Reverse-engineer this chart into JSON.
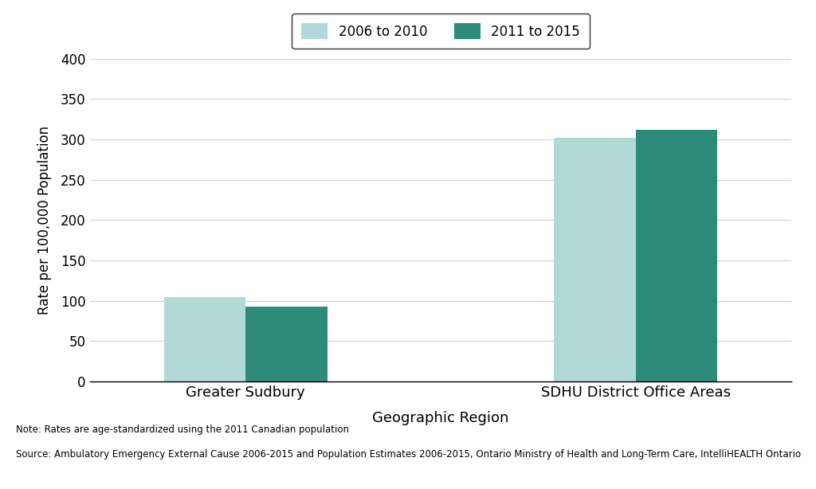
{
  "categories": [
    "Greater Sudbury",
    "SDHU District Office Areas"
  ],
  "series": [
    {
      "label": "2006 to 2010",
      "values": [
        105,
        302
      ],
      "color": "#b2d8d8"
    },
    {
      "label": "2011 to 2015",
      "values": [
        93,
        312
      ],
      "color": "#2e8b7a"
    }
  ],
  "ylabel": "Rate per 100,000 Population",
  "xlabel": "Geographic Region",
  "ylim": [
    0,
    400
  ],
  "yticks": [
    0,
    50,
    100,
    150,
    200,
    250,
    300,
    350,
    400
  ],
  "note": "Note: Rates are age-standardized using the 2011 Canadian population",
  "source": "Source: Ambulatory Emergency External Cause 2006-2015 and Population Estimates 2006-2015, Ontario Ministry of Health and Long-Term Care, IntelliHEALTH Ontario",
  "bar_width": 0.42,
  "background_color": "#ffffff",
  "grid_color": "#d0d0d0"
}
